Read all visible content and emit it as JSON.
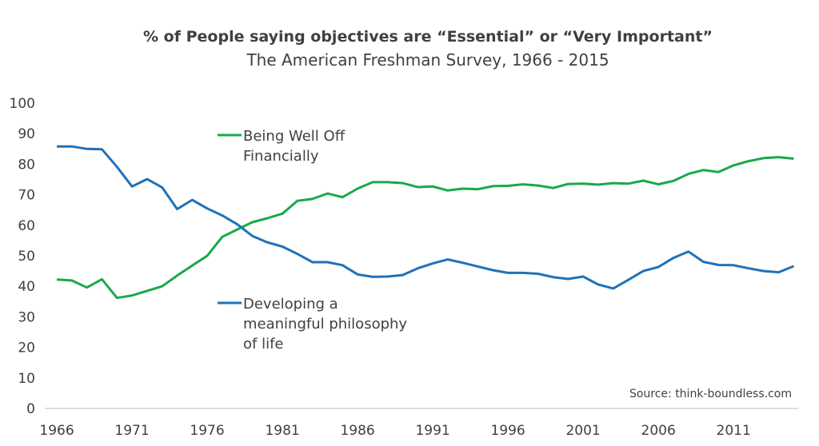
{
  "chart_data": {
    "type": "line",
    "title": "% of People saying objectives are “Essential” or “Very Important”",
    "subtitle": "The American Freshman Survey, 1966 - 2015",
    "source": "Source: think-boundless.com",
    "x": [
      1966,
      1967,
      1968,
      1969,
      1970,
      1971,
      1972,
      1973,
      1974,
      1975,
      1976,
      1977,
      1978,
      1979,
      1980,
      1981,
      1982,
      1983,
      1984,
      1985,
      1986,
      1987,
      1988,
      1989,
      1990,
      1991,
      1992,
      1993,
      1994,
      1995,
      1996,
      1997,
      1998,
      1999,
      2000,
      2001,
      2002,
      2003,
      2004,
      2005,
      2006,
      2007,
      2008,
      2009,
      2010,
      2011,
      2012,
      2013,
      2014,
      2015
    ],
    "series": [
      {
        "name": "Being Well Off\nFinancially",
        "color": "#1aa84c",
        "values": [
          42.2,
          41.9,
          39.6,
          42.3,
          36.2,
          37.0,
          38.5,
          40.0,
          43.5,
          46.8,
          50.0,
          56.2,
          58.6,
          61.0,
          62.3,
          63.8,
          68.0,
          68.6,
          70.4,
          69.2,
          72.0,
          74.1,
          74.1,
          73.8,
          72.5,
          72.7,
          71.4,
          72.0,
          71.8,
          72.8,
          72.9,
          73.4,
          73.0,
          72.2,
          73.5,
          73.6,
          73.3,
          73.8,
          73.6,
          74.6,
          73.4,
          74.5,
          76.8,
          78.1,
          77.4,
          79.6,
          81.0,
          82.0,
          82.3,
          81.8
        ]
      },
      {
        "name": "Developing a\nmeaningful philosophy\nof life",
        "color": "#1f72b8",
        "values": [
          85.8,
          85.8,
          85.0,
          84.9,
          79.1,
          72.7,
          75.1,
          72.4,
          65.3,
          68.3,
          65.5,
          63.2,
          60.3,
          56.5,
          54.4,
          53.0,
          50.6,
          47.9,
          47.9,
          46.9,
          43.9,
          43.1,
          43.2,
          43.7,
          45.9,
          47.5,
          48.8,
          47.7,
          46.5,
          45.3,
          44.4,
          44.4,
          44.1,
          43.0,
          42.4,
          43.2,
          40.6,
          39.3,
          42.1,
          45.0,
          46.3,
          49.3,
          51.4,
          48.0,
          47.0,
          46.9,
          45.9,
          45.0,
          44.6,
          46.6
        ]
      }
    ],
    "xlim": [
      1965.2,
      2015.3
    ],
    "xticks": [
      1966,
      1971,
      1976,
      1981,
      1986,
      1991,
      1996,
      2001,
      2006,
      2011
    ],
    "ylim": [
      0,
      100
    ],
    "yticks": [
      0,
      10,
      20,
      30,
      40,
      50,
      60,
      70,
      80,
      90,
      100
    ]
  }
}
